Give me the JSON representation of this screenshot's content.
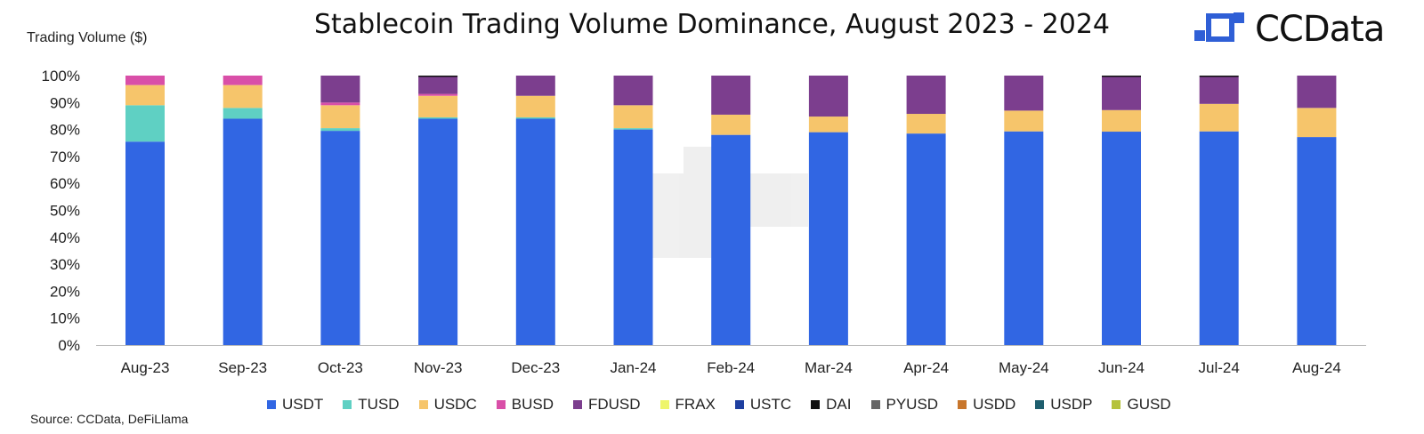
{
  "title": "Stablecoin Trading Volume Dominance, August 2023 - 2024",
  "ylabel": "Trading Volume ($)",
  "source": "Source: CCData, DeFiLlama",
  "logo": {
    "text": "CCData",
    "icon": "ccdata-logo-icon",
    "color": "#2f5fd6"
  },
  "chart_data": {
    "type": "bar",
    "stacked": true,
    "title": "Stablecoin Trading Volume Dominance, August 2023 - 2024",
    "ylabel": "Trading Volume ($)",
    "xlabel": "",
    "ylim": [
      0,
      100
    ],
    "yticks": [
      "0%",
      "10%",
      "20%",
      "30%",
      "40%",
      "50%",
      "60%",
      "70%",
      "80%",
      "90%",
      "100%"
    ],
    "grid": false,
    "legend_position": "bottom",
    "categories": [
      "Aug-23",
      "Sep-23",
      "Oct-23",
      "Nov-23",
      "Dec-23",
      "Jan-24",
      "Feb-24",
      "Mar-24",
      "Apr-24",
      "May-24",
      "Jun-24",
      "Jul-24",
      "Aug-24"
    ],
    "series": [
      {
        "name": "USDT",
        "color": "#3166e3",
        "values": [
          75.5,
          84,
          79.5,
          84,
          84,
          80,
          78,
          79,
          78.5,
          79.3,
          79.2,
          79.3,
          77.2
        ]
      },
      {
        "name": "TUSD",
        "color": "#5fd0c3",
        "values": [
          13.5,
          4,
          1,
          0.5,
          0.5,
          0.5,
          0,
          0,
          0,
          0,
          0,
          0,
          0
        ]
      },
      {
        "name": "USDC",
        "color": "#f6c56b",
        "values": [
          7.5,
          8.5,
          8.5,
          8,
          8,
          8.5,
          7.5,
          5.8,
          7.3,
          7.7,
          8,
          10.2,
          10.8
        ]
      },
      {
        "name": "BUSD",
        "color": "#d94fa8",
        "values": [
          3.5,
          3.5,
          1,
          0.7,
          0,
          0,
          0,
          0,
          0,
          0,
          0,
          0,
          0
        ]
      },
      {
        "name": "FDUSD",
        "color": "#7c3e8e",
        "values": [
          0,
          0,
          10,
          6.3,
          7.5,
          11,
          14.5,
          15.2,
          14.2,
          13,
          12.3,
          10,
          12
        ]
      },
      {
        "name": "FRAX",
        "color": "#eef56a",
        "values": [
          0,
          0,
          0,
          0,
          0,
          0,
          0,
          0,
          0,
          0,
          0,
          0,
          0
        ]
      },
      {
        "name": "USTC",
        "color": "#1f3fa0",
        "values": [
          0,
          0,
          0,
          0,
          0,
          0,
          0,
          0,
          0,
          0,
          0,
          0,
          0
        ]
      },
      {
        "name": "DAI",
        "color": "#111111",
        "values": [
          0,
          0,
          0,
          0.5,
          0,
          0,
          0,
          0,
          0,
          0,
          0.5,
          0.5,
          0
        ]
      },
      {
        "name": "PYUSD",
        "color": "#666666",
        "values": [
          0,
          0,
          0,
          0,
          0,
          0,
          0,
          0,
          0,
          0,
          0,
          0,
          0
        ]
      },
      {
        "name": "USDD",
        "color": "#c8762c",
        "values": [
          0,
          0,
          0,
          0,
          0,
          0,
          0,
          0,
          0,
          0,
          0,
          0,
          0
        ]
      },
      {
        "name": "USDP",
        "color": "#1e5e6e",
        "values": [
          0,
          0,
          0,
          0,
          0,
          0,
          0,
          0,
          0,
          0,
          0,
          0,
          0
        ]
      },
      {
        "name": "GUSD",
        "color": "#b5c23c",
        "values": [
          0,
          0,
          0,
          0,
          0,
          0,
          0,
          0,
          0,
          0,
          0,
          0,
          0
        ]
      }
    ]
  }
}
